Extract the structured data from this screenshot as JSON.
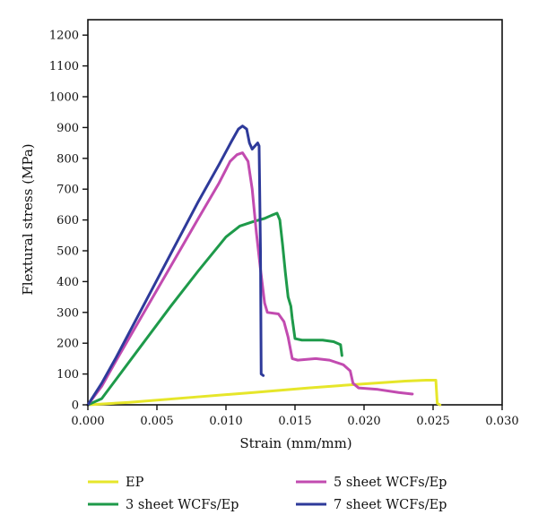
{
  "chart_data": {
    "type": "line",
    "xlabel": "Strain (mm/mm)",
    "ylabel": "Flextural stress (MPa)",
    "xlim": [
      0,
      0.03
    ],
    "ylim": [
      0,
      1250
    ],
    "xticks": [
      "0.000",
      "0.005",
      "0.010",
      "0.015",
      "0.020",
      "0.025",
      "0.030"
    ],
    "yticks": [
      "0",
      "100",
      "200",
      "300",
      "400",
      "500",
      "600",
      "700",
      "800",
      "900",
      "1000",
      "1100",
      "1200"
    ],
    "grid": false,
    "legend_position": "bottom",
    "series": [
      {
        "name": "EP",
        "color": "#e6e62a",
        "points": [
          [
            0.0,
            0
          ],
          [
            0.003,
            8
          ],
          [
            0.008,
            26
          ],
          [
            0.012,
            40
          ],
          [
            0.016,
            55
          ],
          [
            0.02,
            68
          ],
          [
            0.023,
            77
          ],
          [
            0.0245,
            80
          ],
          [
            0.0252,
            80
          ],
          [
            0.0253,
            5
          ],
          [
            0.0255,
            0
          ]
        ]
      },
      {
        "name": "3 sheet WCFs/Ep",
        "color": "#1e9a4a",
        "points": [
          [
            0.0,
            0
          ],
          [
            0.001,
            20
          ],
          [
            0.002,
            80
          ],
          [
            0.004,
            200
          ],
          [
            0.006,
            320
          ],
          [
            0.008,
            435
          ],
          [
            0.01,
            545
          ],
          [
            0.011,
            580
          ],
          [
            0.012,
            595
          ],
          [
            0.0128,
            605
          ],
          [
            0.0133,
            615
          ],
          [
            0.0137,
            622
          ],
          [
            0.0139,
            600
          ],
          [
            0.0141,
            520
          ],
          [
            0.0143,
            430
          ],
          [
            0.0145,
            350
          ],
          [
            0.0147,
            320
          ],
          [
            0.0148,
            280
          ],
          [
            0.015,
            215
          ],
          [
            0.0155,
            210
          ],
          [
            0.017,
            210
          ],
          [
            0.0178,
            205
          ],
          [
            0.0183,
            195
          ],
          [
            0.0184,
            160
          ]
        ]
      },
      {
        "name": "5 sheet WCFs/Ep",
        "color": "#c24bb0",
        "points": [
          [
            0.0,
            0
          ],
          [
            0.001,
            60
          ],
          [
            0.002,
            140
          ],
          [
            0.004,
            295
          ],
          [
            0.006,
            450
          ],
          [
            0.008,
            605
          ],
          [
            0.0095,
            720
          ],
          [
            0.0103,
            790
          ],
          [
            0.0108,
            812
          ],
          [
            0.0112,
            818
          ],
          [
            0.0116,
            790
          ],
          [
            0.0119,
            700
          ],
          [
            0.0122,
            560
          ],
          [
            0.0125,
            440
          ],
          [
            0.0128,
            330
          ],
          [
            0.013,
            300
          ],
          [
            0.0138,
            295
          ],
          [
            0.0142,
            270
          ],
          [
            0.0145,
            220
          ],
          [
            0.0148,
            150
          ],
          [
            0.0152,
            145
          ],
          [
            0.0165,
            150
          ],
          [
            0.0175,
            145
          ],
          [
            0.0185,
            130
          ],
          [
            0.019,
            110
          ],
          [
            0.0192,
            70
          ],
          [
            0.0196,
            55
          ],
          [
            0.021,
            50
          ],
          [
            0.0225,
            40
          ],
          [
            0.0235,
            35
          ]
        ]
      },
      {
        "name": "7 sheet WCFs/Ep",
        "color": "#2e3a9a",
        "points": [
          [
            0.0,
            0
          ],
          [
            0.001,
            70
          ],
          [
            0.002,
            150
          ],
          [
            0.004,
            320
          ],
          [
            0.006,
            490
          ],
          [
            0.008,
            660
          ],
          [
            0.0095,
            780
          ],
          [
            0.0104,
            855
          ],
          [
            0.0109,
            895
          ],
          [
            0.0112,
            905
          ],
          [
            0.0115,
            895
          ],
          [
            0.0117,
            850
          ],
          [
            0.0119,
            830
          ],
          [
            0.0121,
            840
          ],
          [
            0.0123,
            850
          ],
          [
            0.0124,
            840
          ],
          [
            0.0125,
            500
          ],
          [
            0.01255,
            100
          ],
          [
            0.0127,
            95
          ]
        ]
      }
    ]
  }
}
